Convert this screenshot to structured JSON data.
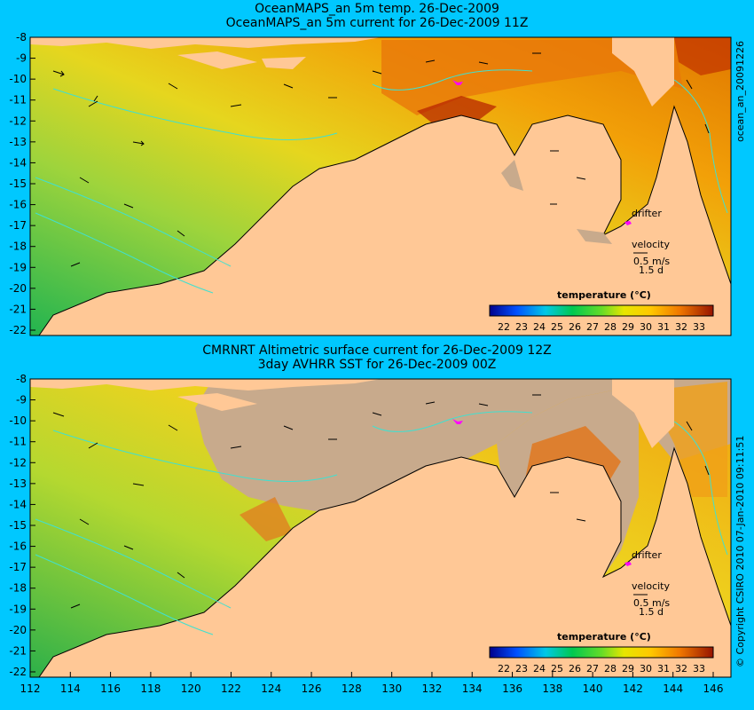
{
  "top_panel": {
    "title_line1": "OceanMAPS_an 5m temp. 26-Dec-2009",
    "title_line2": "OceanMAPS_an 5m current for 26-Dec-2009 11Z",
    "side_label": "ocean_an_20091226",
    "drifter_label": "drifter",
    "velocity_label": "velocity",
    "velocity_scale": "0.5 m/s",
    "velocity_period": "1.5 d",
    "colorbar_title": "temperature (°C)"
  },
  "bottom_panel": {
    "title_line1": "CMRNRT Altimetric surface current for 26-Dec-2009 12Z",
    "title_line2": "3day AVHRR SST for 26-Dec-2009 00Z",
    "side_label": "© Copyright CSIRO 2010   07-Jan-2010 09:11:51",
    "drifter_label": "drifter",
    "velocity_label": "velocity",
    "velocity_scale": "0.5 m/s",
    "velocity_period": "1.5 d",
    "colorbar_title": "temperature (°C)"
  },
  "y_ticks": [
    "-8",
    "-9",
    "-10",
    "-11",
    "-12",
    "-13",
    "-14",
    "-15",
    "-16",
    "-17",
    "-18",
    "-19",
    "-20",
    "-21",
    "-22"
  ],
  "x_ticks": [
    "112",
    "114",
    "116",
    "118",
    "120",
    "122",
    "124",
    "126",
    "128",
    "130",
    "132",
    "134",
    "136",
    "138",
    "140",
    "142",
    "144",
    "146"
  ],
  "colorbar_ticks": [
    "22",
    "23",
    "24",
    "25",
    "26",
    "27",
    "28",
    "29",
    "30",
    "31",
    "32",
    "33"
  ],
  "colors": {
    "background": "#00c8ff",
    "land": "#ffc896",
    "no_data": "#c8aa8c",
    "contour": "#40e0d0",
    "drifter": "#ff00ff"
  }
}
